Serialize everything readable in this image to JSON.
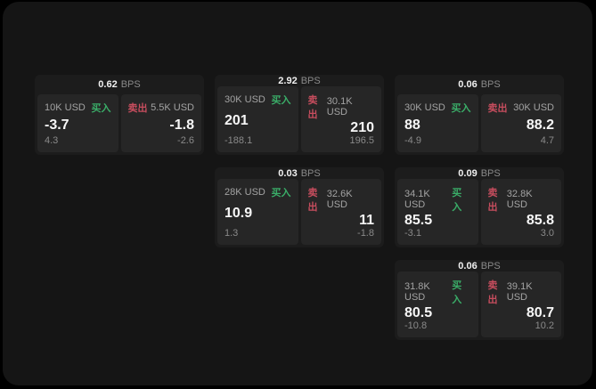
{
  "labels": {
    "buy": "买入",
    "sell": "卖出",
    "bps": "BPS"
  },
  "colors": {
    "background": "#000000",
    "surface": "#151515",
    "card": "#1c1c1c",
    "panel": "#262626",
    "buy_green": "#3aad68",
    "sell_red": "#c74d5e",
    "value_white": "#f7f7f7",
    "muted_gray": "#8a8a8a"
  },
  "cards": [
    {
      "bps": "0.62",
      "buy": {
        "amount": "10K USD",
        "main": "-3.7",
        "sub": "4.3"
      },
      "sell": {
        "amount": "5.5K USD",
        "main": "-1.8",
        "sub": "-2.6"
      }
    },
    {
      "bps": "2.92",
      "buy": {
        "amount": "30K USD",
        "main": "201",
        "sub": "-188.1"
      },
      "sell": {
        "amount": "30.1K USD",
        "main": "210",
        "sub": "196.5"
      }
    },
    {
      "bps": "0.06",
      "buy": {
        "amount": "30K USD",
        "main": "88",
        "sub": "-4.9"
      },
      "sell": {
        "amount": "30K USD",
        "main": "88.2",
        "sub": "4.7"
      }
    },
    {
      "bps": "0.03",
      "buy": {
        "amount": "28K USD",
        "main": "10.9",
        "sub": "1.3"
      },
      "sell": {
        "amount": "32.6K USD",
        "main": "11",
        "sub": "-1.8"
      }
    },
    {
      "bps": "0.09",
      "buy": {
        "amount": "34.1K USD",
        "main": "85.5",
        "sub": "-3.1"
      },
      "sell": {
        "amount": "32.8K USD",
        "main": "85.8",
        "sub": "3.0"
      }
    },
    {
      "bps": "0.06",
      "buy": {
        "amount": "31.8K USD",
        "main": "80.5",
        "sub": "-10.8"
      },
      "sell": {
        "amount": "39.1K USD",
        "main": "80.7",
        "sub": "10.2"
      }
    }
  ]
}
